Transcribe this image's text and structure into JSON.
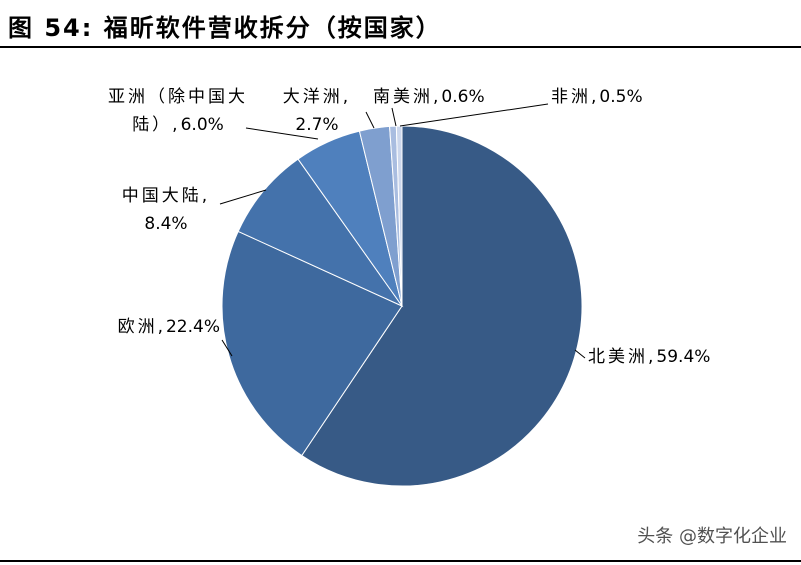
{
  "chart_data": {
    "type": "pie",
    "title": "图 54:  福昕软件营收拆分（按国家）",
    "categories": [
      "北美洲,",
      "欧洲,",
      "中国大陆,",
      "亚洲（除中国大陆）,",
      "大洋洲,",
      "南美洲,",
      "非洲,"
    ],
    "values": [
      59.4,
      22.4,
      8.4,
      6.0,
      2.7,
      0.6,
      0.5
    ],
    "value_labels": [
      "59.4%",
      "22.4%",
      "8.4%",
      "6.0%",
      "2.7%",
      "0.6%",
      "0.5%"
    ],
    "colors": [
      "#375a86",
      "#3e699e",
      "#4472ab",
      "#4f80bd",
      "#7f9fcf",
      "#a9bde0",
      "#ccd7ec"
    ],
    "start_angle": 90,
    "direction": "clockwise",
    "watermark": "头条 @数字化企业"
  }
}
